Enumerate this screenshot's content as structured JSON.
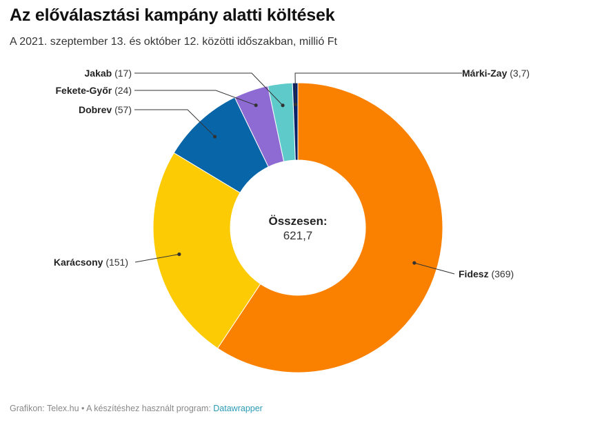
{
  "header": {
    "title": "Az előválasztási kampány alatti költések",
    "subtitle": "A 2021. szeptember 13. és október 12. közötti időszakban, millió Ft"
  },
  "center": {
    "label": "Összesen:",
    "value": "621,7"
  },
  "footer": {
    "text": "Grafikon: Telex.hu • A készítéshez használt program: ",
    "link": "Datawrapper"
  },
  "chart_data": {
    "type": "pie",
    "variant": "donut",
    "title": "Az előválasztási kampány alatti költések",
    "subtitle": "A 2021. szeptember 13. és október 12. közötti időszakban, millió Ft",
    "total": 621.7,
    "slices": [
      {
        "name": "Fidesz",
        "value": 369,
        "label": "(369)",
        "color": "#fa8100"
      },
      {
        "name": "Karácsony",
        "value": 151,
        "label": "(151)",
        "color": "#fccb04"
      },
      {
        "name": "Dobrev",
        "value": 57,
        "label": "(57)",
        "color": "#0865a8"
      },
      {
        "name": "Fekete-Győr",
        "value": 24,
        "label": "(24)",
        "color": "#8d6bd3"
      },
      {
        "name": "Jakab",
        "value": 17,
        "label": "(17)",
        "color": "#5ecbca"
      },
      {
        "name": "Márki-Zay",
        "value": 3.7,
        "label": "(3,7)",
        "color": "#0c2267"
      }
    ]
  }
}
